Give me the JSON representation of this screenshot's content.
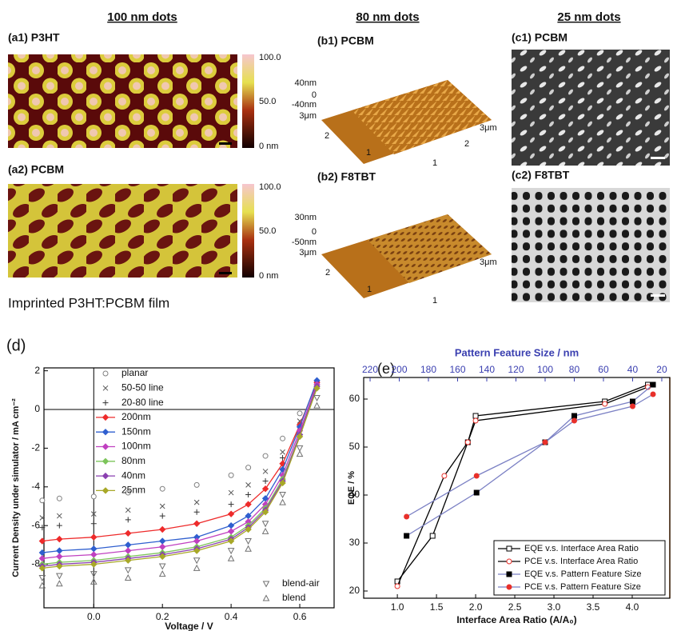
{
  "headings": [
    "100 nm dots",
    "80 nm dots",
    "25 nm dots"
  ],
  "panels": [
    {
      "label": "(a1) P3HT",
      "colorbar": [
        "100.0",
        "50.0",
        "0 nm"
      ]
    },
    {
      "label": "(a2) PCBM",
      "colorbar": [
        "100.0",
        "50.0",
        "0 nm"
      ]
    },
    {
      "label": "(b1) PCBM",
      "axis_labels": [
        "40nm",
        "0",
        "-40nm",
        "3μm",
        "2",
        "1",
        "3μm",
        "2",
        "1"
      ]
    },
    {
      "label": "(b2) F8TBT",
      "axis_labels": [
        "30nm",
        "0",
        "-50nm",
        "3μm",
        "2",
        "1",
        "3μm",
        "1"
      ]
    },
    {
      "label": "(c1) PCBM"
    },
    {
      "label": "(c2) F8TBT"
    }
  ],
  "caption": "Imprinted P3HT:PCBM film",
  "chart_data": [
    {
      "type": "line",
      "label": "(d)",
      "xlabel": "Voltage / V",
      "ylabel": "Current Density under simulator / mA cm⁻²",
      "xlim": [
        -0.145,
        0.7
      ],
      "ylim": [
        -10.25,
        2.15
      ],
      "xticks": [
        {
          "value": 0,
          "label": "0.0"
        },
        0.2,
        0.4,
        0.6
      ],
      "yticks": [
        -8,
        -6,
        -4,
        -2,
        0,
        2
      ],
      "x": [
        -0.15,
        -0.1,
        0,
        0.1,
        0.2,
        0.3,
        0.4,
        0.45,
        0.5,
        0.55,
        0.6,
        0.65,
        0.7
      ],
      "series": [
        {
          "name": "planar",
          "color": "#808080",
          "marker": "circle",
          "line": false,
          "legend": "upper-left",
          "values": [
            -4.7,
            -4.6,
            -4.5,
            -4.3,
            -4.1,
            -3.9,
            -3.4,
            -3.0,
            -2.4,
            -1.5,
            -0.2,
            1.4,
            null
          ]
        },
        {
          "name": "50-50 line",
          "color": "#555555",
          "marker": "x",
          "line": false,
          "legend": "upper-left",
          "values": [
            -5.6,
            -5.5,
            -5.4,
            -5.2,
            -5.0,
            -4.8,
            -4.3,
            -3.9,
            -3.2,
            -2.2,
            -0.6,
            1.3,
            null
          ]
        },
        {
          "name": "20-80 line",
          "color": "#333333",
          "marker": "plus",
          "line": false,
          "legend": "upper-left",
          "values": [
            -6.1,
            -6.0,
            -5.9,
            -5.7,
            -5.5,
            -5.3,
            -4.9,
            -4.4,
            -3.7,
            -2.5,
            -0.8,
            1.2,
            null
          ]
        },
        {
          "name": "200nm",
          "color": "#ee2b2b",
          "marker": "diamond",
          "line": true,
          "legend": "upper-left",
          "values": [
            -6.8,
            -6.7,
            -6.6,
            -6.4,
            -6.2,
            -5.9,
            -5.4,
            -4.9,
            -4.1,
            -2.8,
            -0.8,
            1.4,
            null
          ]
        },
        {
          "name": "150nm",
          "color": "#2f5fcf",
          "marker": "diamond",
          "line": true,
          "legend": "upper-left",
          "values": [
            -7.4,
            -7.3,
            -7.2,
            -7.0,
            -6.8,
            -6.6,
            -6.0,
            -5.5,
            -4.6,
            -3.1,
            -0.9,
            1.5,
            null
          ]
        },
        {
          "name": "100nm",
          "color": "#c040c0",
          "marker": "diamond",
          "line": true,
          "legend": "upper-left",
          "values": [
            -7.7,
            -7.6,
            -7.5,
            -7.3,
            -7.1,
            -6.8,
            -6.3,
            -5.8,
            -4.9,
            -3.4,
            -1.1,
            1.3,
            null
          ]
        },
        {
          "name": "80nm",
          "color": "#7cc45a",
          "marker": "diamond",
          "line": true,
          "legend": "upper-left",
          "values": [
            -8.0,
            -7.9,
            -7.8,
            -7.6,
            -7.4,
            -7.1,
            -6.6,
            -6.0,
            -5.1,
            -3.6,
            -1.3,
            1.2,
            null
          ]
        },
        {
          "name": "40nm",
          "color": "#8a3fb0",
          "marker": "diamond",
          "line": true,
          "legend": "upper-left",
          "values": [
            -8.1,
            -8.0,
            -7.9,
            -7.7,
            -7.5,
            -7.2,
            -6.7,
            -6.1,
            -5.2,
            -3.7,
            -1.3,
            1.2,
            null
          ]
        },
        {
          "name": "25nm",
          "color": "#a8a828",
          "marker": "diamond",
          "line": true,
          "legend": "upper-left",
          "values": [
            -8.2,
            -8.1,
            -8.0,
            -7.8,
            -7.6,
            -7.3,
            -6.8,
            -6.2,
            -5.3,
            -3.8,
            -1.4,
            1.1,
            null
          ]
        },
        {
          "name": "blend-air",
          "color": "#707070",
          "marker": "triangle-down",
          "line": false,
          "legend": "lower-right",
          "values": [
            -8.7,
            -8.6,
            -8.5,
            -8.3,
            -8.1,
            -7.8,
            -7.3,
            -6.8,
            -5.9,
            -4.4,
            -2.0,
            0.6,
            null
          ]
        },
        {
          "name": "blend",
          "color": "#707070",
          "marker": "triangle",
          "line": false,
          "legend": "lower-right",
          "values": [
            -9.1,
            -9.0,
            -8.9,
            -8.7,
            -8.5,
            -8.2,
            -7.7,
            -7.2,
            -6.3,
            -4.8,
            -2.3,
            0.2,
            null
          ]
        }
      ]
    },
    {
      "type": "line",
      "label": "(e)",
      "xlabel": "Interface Area Ratio (A/A₀)",
      "ylabel": "EQE / %",
      "x2label": "Pattern Feature Size / nm",
      "x2_color": "#3a3fb0",
      "xlim": [
        0.57,
        4.48
      ],
      "ylim": [
        18.5,
        64.5
      ],
      "x2lim": [
        224.4,
        14.5
      ],
      "xticks": [
        {
          "value": 1,
          "label": "1.0"
        },
        1.5,
        {
          "value": 2,
          "label": "2.0"
        },
        2.5,
        {
          "value": 3,
          "label": "3.0"
        },
        3.5,
        {
          "value": 4,
          "label": "4.0"
        }
      ],
      "x2ticks": [
        220,
        200,
        180,
        160,
        140,
        120,
        100,
        80,
        60,
        40,
        20
      ],
      "yticks": [
        20,
        30,
        40,
        50,
        60
      ],
      "legend": "lower-right",
      "series": [
        {
          "name": "EQE v.s. Interface Area Ratio",
          "color": "#000000",
          "marker": "square",
          "marker_color": "#000000",
          "filled": false,
          "x": [
            1.0,
            1.45,
            1.9,
            2.0,
            3.65,
            4.2
          ],
          "values": [
            22,
            31.5,
            51,
            56.5,
            59.5,
            63
          ]
        },
        {
          "name": "PCE v.s. Interface Area Ratio",
          "color": "#000000",
          "marker": "circle",
          "marker_color": "#e8302a",
          "filled": false,
          "x": [
            1.0,
            1.6,
            1.9,
            2.0,
            3.65,
            4.2
          ],
          "values": [
            21,
            44,
            51,
            55.5,
            59,
            62.5
          ]
        },
        {
          "name": "EQE v.s. Pattern Feature Size",
          "color": "#7b80c4",
          "marker": "square",
          "marker_color": "#000000",
          "filled": true,
          "axis": "x2",
          "x": [
            195,
            147,
            100,
            80,
            40,
            26
          ],
          "values": [
            31.5,
            40.5,
            51,
            56.5,
            59.5,
            63
          ]
        },
        {
          "name": "PCE v.s. Pattern Feature Size",
          "color": "#7b80c4",
          "marker": "circle",
          "marker_color": "#e8302a",
          "filled": true,
          "axis": "x2",
          "x": [
            195,
            147,
            100,
            80,
            40,
            26
          ],
          "values": [
            35.5,
            44,
            51,
            55.5,
            58.5,
            61
          ]
        }
      ]
    }
  ]
}
